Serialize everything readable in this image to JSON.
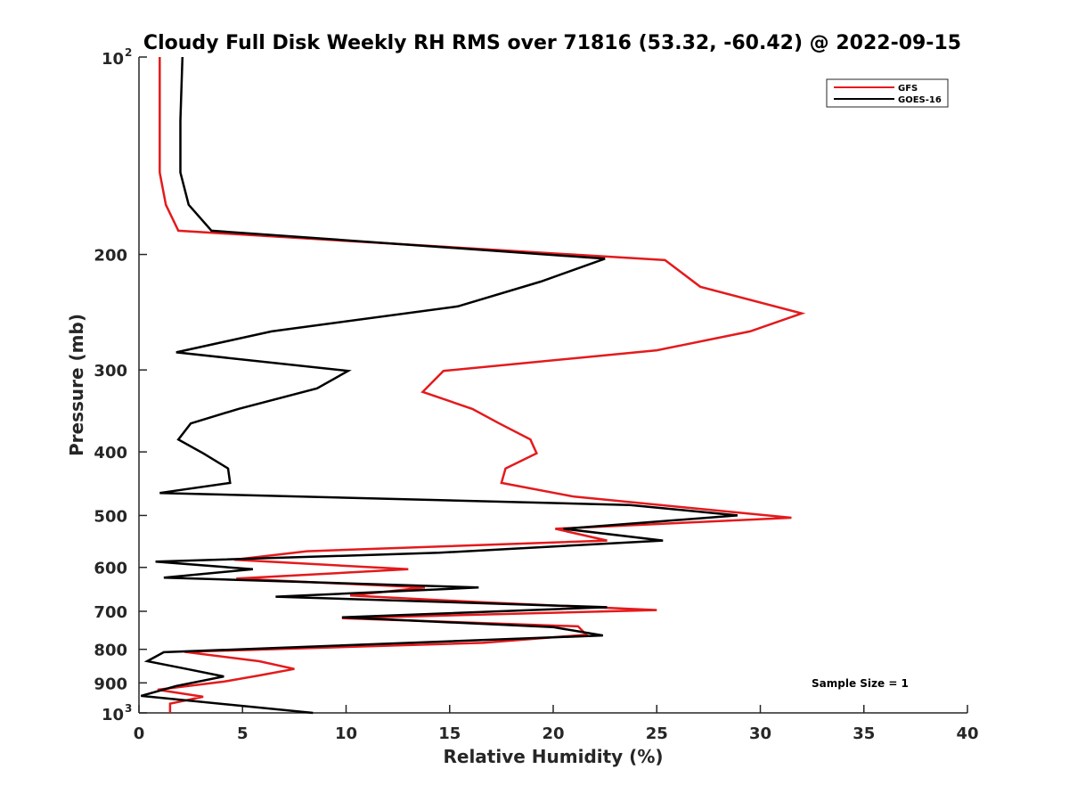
{
  "chart_data": {
    "type": "line",
    "title": "Cloudy Full Disk Weekly RH RMS over 71816 (53.32, -60.42) @ 2022-09-15",
    "xlabel": "Relative Humidity (%)",
    "ylabel": "Pressure (mb)",
    "xlim": [
      0,
      40
    ],
    "ylim": [
      100,
      1000
    ],
    "yscale": "log",
    "y_reversed": true,
    "grid": false,
    "legend_position": "top-right",
    "x_ticks": [
      {
        "value": 0,
        "label": "0"
      },
      {
        "value": 5,
        "label": "5"
      },
      {
        "value": 10,
        "label": "10"
      },
      {
        "value": 15,
        "label": "15"
      },
      {
        "value": 20,
        "label": "20"
      },
      {
        "value": 25,
        "label": "25"
      },
      {
        "value": 30,
        "label": "30"
      },
      {
        "value": 35,
        "label": "35"
      },
      {
        "value": 40,
        "label": "40"
      }
    ],
    "y_ticks": [
      {
        "value": 100,
        "label": "10",
        "sup": "2"
      },
      {
        "value": 200,
        "label": "200"
      },
      {
        "value": 300,
        "label": "300"
      },
      {
        "value": 400,
        "label": "400"
      },
      {
        "value": 500,
        "label": "500"
      },
      {
        "value": 600,
        "label": "600"
      },
      {
        "value": 700,
        "label": "700"
      },
      {
        "value": 800,
        "label": "800"
      },
      {
        "value": 900,
        "label": "900"
      },
      {
        "value": 1000,
        "label": "10",
        "sup": "3"
      }
    ],
    "series": [
      {
        "name": "GFS",
        "color": "#e41a1c",
        "points": [
          [
            1.0,
            100
          ],
          [
            1.0,
            125
          ],
          [
            1.0,
            150
          ],
          [
            1.3,
            168
          ],
          [
            1.9,
            184
          ],
          [
            25.4,
            204
          ],
          [
            27.1,
            224
          ],
          [
            32.0,
            246
          ],
          [
            29.5,
            262
          ],
          [
            25.0,
            280
          ],
          [
            14.7,
            301
          ],
          [
            13.7,
            324
          ],
          [
            16.1,
            344
          ],
          [
            17.4,
            362
          ],
          [
            18.9,
            383
          ],
          [
            19.2,
            402
          ],
          [
            17.7,
            424
          ],
          [
            17.5,
            446
          ],
          [
            21.0,
            468
          ],
          [
            27.5,
            490
          ],
          [
            31.5,
            504
          ],
          [
            20.1,
            524
          ],
          [
            22.6,
            546
          ],
          [
            8.1,
            567
          ],
          [
            4.6,
            584
          ],
          [
            13.0,
            604
          ],
          [
            4.7,
            624
          ],
          [
            13.8,
            644
          ],
          [
            10.2,
            662
          ],
          [
            16.5,
            678
          ],
          [
            25.0,
            697
          ],
          [
            9.8,
            717
          ],
          [
            21.2,
            738
          ],
          [
            21.6,
            760
          ],
          [
            16.6,
            782
          ],
          [
            2.2,
            807
          ],
          [
            5.8,
            834
          ],
          [
            7.5,
            857
          ],
          [
            5.8,
            877
          ],
          [
            4.1,
            896
          ],
          [
            0.9,
            922
          ],
          [
            3.1,
            945
          ],
          [
            1.5,
            968
          ],
          [
            1.5,
            1000
          ]
        ]
      },
      {
        "name": "GOES-16",
        "color": "#000000",
        "points": [
          [
            2.1,
            100
          ],
          [
            2.0,
            125
          ],
          [
            2.0,
            150
          ],
          [
            2.4,
            168
          ],
          [
            3.5,
            184
          ],
          [
            22.5,
            203
          ],
          [
            19.4,
            220
          ],
          [
            15.4,
            240
          ],
          [
            6.4,
            262
          ],
          [
            1.8,
            282
          ],
          [
            10.1,
            301
          ],
          [
            8.6,
            320
          ],
          [
            4.8,
            344
          ],
          [
            2.5,
            362
          ],
          [
            1.9,
            383
          ],
          [
            3.1,
            402
          ],
          [
            4.3,
            424
          ],
          [
            4.4,
            446
          ],
          [
            1.0,
            462
          ],
          [
            23.7,
            482
          ],
          [
            28.9,
            500
          ],
          [
            20.5,
            524
          ],
          [
            25.3,
            546
          ],
          [
            14.5,
            570
          ],
          [
            0.8,
            588
          ],
          [
            5.5,
            604
          ],
          [
            1.2,
            622
          ],
          [
            16.4,
            644
          ],
          [
            6.6,
            665
          ],
          [
            22.6,
            690
          ],
          [
            9.8,
            715
          ],
          [
            20.0,
            740
          ],
          [
            22.4,
            762
          ],
          [
            1.2,
            808
          ],
          [
            0.4,
            834
          ],
          [
            2.3,
            857
          ],
          [
            4.1,
            880
          ],
          [
            1.8,
            910
          ],
          [
            0.1,
            942
          ],
          [
            8.4,
            1000
          ]
        ]
      }
    ],
    "annotations": [
      {
        "text": "Sample Size = 1"
      }
    ]
  }
}
